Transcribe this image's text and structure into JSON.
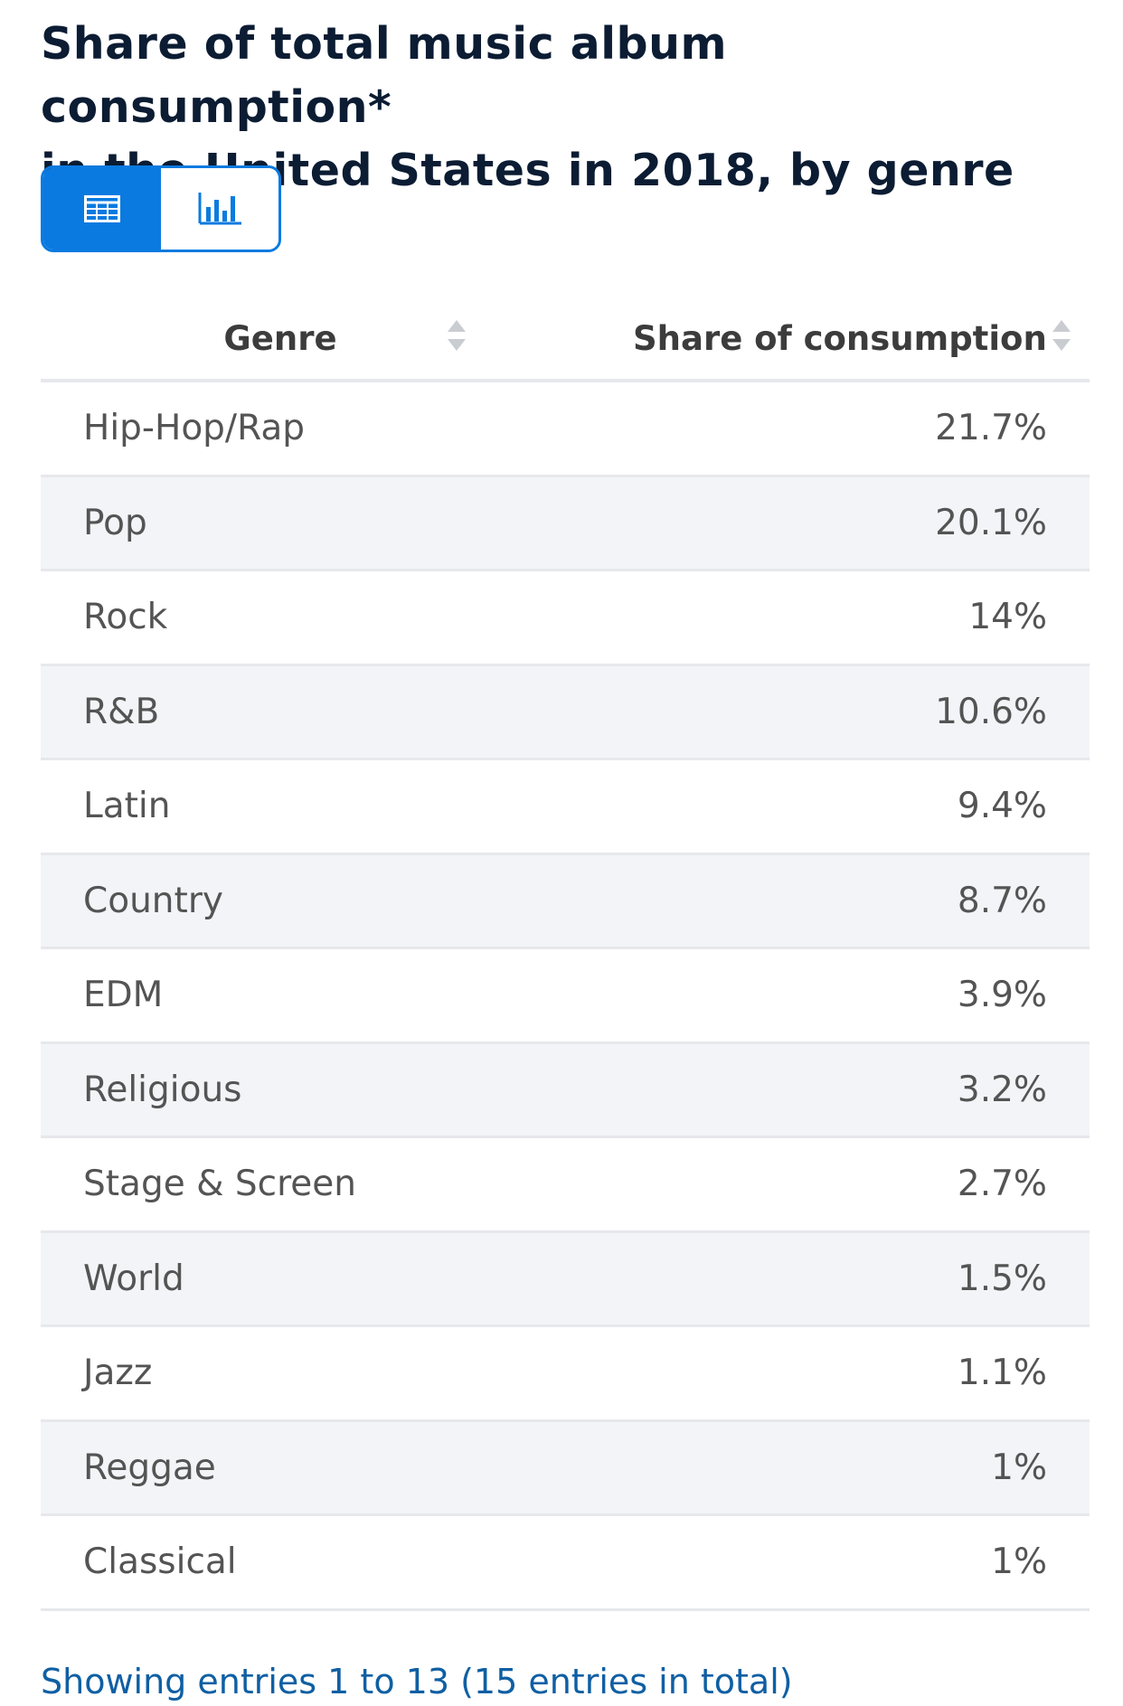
{
  "title_line1": "Share of total music album consumption*",
  "title_line2": "in the United States in 2018, by genre",
  "view_toggle": {
    "active": "table",
    "buttons": [
      {
        "name": "table-view",
        "icon": "table-icon"
      },
      {
        "name": "chart-view",
        "icon": "bar-chart-icon"
      }
    ]
  },
  "colors": {
    "accent": "#0a7ae0",
    "title": "#0b1c33",
    "row_alt": "#f2f4f8",
    "footer_link": "#0f5fa3"
  },
  "chart_data": {
    "type": "table",
    "columns": [
      "Genre",
      "Share of consumption"
    ],
    "rows": [
      {
        "genre": "Hip-Hop/Rap",
        "share": "21.7%"
      },
      {
        "genre": "Pop",
        "share": "20.1%"
      },
      {
        "genre": "Rock",
        "share": "14%"
      },
      {
        "genre": "R&B",
        "share": "10.6%"
      },
      {
        "genre": "Latin",
        "share": "9.4%"
      },
      {
        "genre": "Country",
        "share": "8.7%"
      },
      {
        "genre": "EDM",
        "share": "3.9%"
      },
      {
        "genre": "Religious",
        "share": "3.2%"
      },
      {
        "genre": "Stage & Screen",
        "share": "2.7%"
      },
      {
        "genre": "World",
        "share": "1.5%"
      },
      {
        "genre": "Jazz",
        "share": "1.1%"
      },
      {
        "genre": "Reggae",
        "share": "1%"
      },
      {
        "genre": "Classical",
        "share": "1%"
      }
    ]
  },
  "footer": "Showing entries 1 to 13 (15 entries in total)"
}
